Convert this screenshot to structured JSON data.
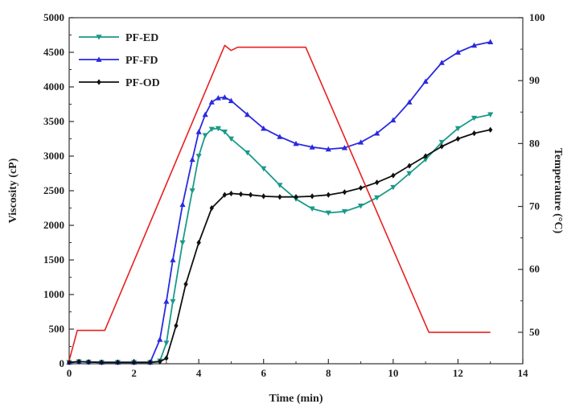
{
  "chart_data": {
    "type": "line",
    "xlabel": "Time (min)",
    "ylabel": "Viscosity (cP)",
    "y2label": "Temperature (°C)",
    "xlim": [
      0,
      14
    ],
    "ylim": [
      0,
      5000
    ],
    "y2lim": [
      45,
      100
    ],
    "xticks": [
      "0",
      "2",
      "4",
      "6",
      "8",
      "10",
      "12",
      "14"
    ],
    "yticks": [
      "0",
      "500",
      "1000",
      "1500",
      "2000",
      "2500",
      "3000",
      "3500",
      "4000",
      "4500",
      "5000"
    ],
    "y2ticks": [
      "50",
      "60",
      "70",
      "80",
      "90",
      "100"
    ],
    "legend_position": "top-left",
    "grid": false,
    "series": [
      {
        "name": "PF-ED",
        "color": "#1a9a8a",
        "marker": "triangle-down",
        "axis": "left",
        "x": [
          0,
          0.3,
          0.6,
          1.0,
          1.5,
          2.0,
          2.5,
          2.8,
          3.0,
          3.2,
          3.5,
          3.8,
          4.0,
          4.2,
          4.4,
          4.6,
          4.8,
          5.0,
          5.5,
          6.0,
          6.5,
          7.0,
          7.5,
          8.0,
          8.5,
          9.0,
          9.5,
          10.0,
          10.5,
          11.0,
          11.5,
          12.0,
          12.5,
          13.0
        ],
        "y": [
          20,
          30,
          25,
          20,
          20,
          20,
          20,
          40,
          300,
          900,
          1750,
          2500,
          3000,
          3300,
          3390,
          3400,
          3350,
          3250,
          3050,
          2820,
          2580,
          2380,
          2240,
          2180,
          2200,
          2280,
          2400,
          2550,
          2750,
          2950,
          3200,
          3400,
          3550,
          3600
        ]
      },
      {
        "name": "PF-FD",
        "color": "#2a2ae0",
        "marker": "triangle-up",
        "axis": "left",
        "x": [
          0,
          0.3,
          0.6,
          1.0,
          1.5,
          2.0,
          2.5,
          2.8,
          3.0,
          3.2,
          3.5,
          3.8,
          4.0,
          4.2,
          4.4,
          4.6,
          4.8,
          5.0,
          5.5,
          6.0,
          6.5,
          7.0,
          7.5,
          8.0,
          8.5,
          9.0,
          9.5,
          10.0,
          10.5,
          11.0,
          11.5,
          12.0,
          12.5,
          13.0
        ],
        "y": [
          20,
          30,
          25,
          20,
          20,
          20,
          20,
          350,
          900,
          1500,
          2300,
          2950,
          3350,
          3600,
          3780,
          3840,
          3850,
          3800,
          3600,
          3400,
          3280,
          3180,
          3130,
          3100,
          3120,
          3200,
          3330,
          3520,
          3780,
          4080,
          4350,
          4500,
          4600,
          4650
        ]
      },
      {
        "name": "PF-OD",
        "color": "#111111",
        "marker": "diamond",
        "axis": "left",
        "x": [
          0,
          0.3,
          0.6,
          1.0,
          1.5,
          2.0,
          2.5,
          2.8,
          3.0,
          3.3,
          3.6,
          4.0,
          4.4,
          4.8,
          5.0,
          5.3,
          5.6,
          6.0,
          6.5,
          7.0,
          7.5,
          8.0,
          8.5,
          9.0,
          9.5,
          10.0,
          10.5,
          11.0,
          11.5,
          12.0,
          12.5,
          13.0
        ],
        "y": [
          20,
          30,
          25,
          20,
          20,
          20,
          20,
          30,
          80,
          550,
          1150,
          1750,
          2250,
          2440,
          2460,
          2450,
          2440,
          2420,
          2410,
          2410,
          2420,
          2440,
          2480,
          2540,
          2620,
          2720,
          2860,
          3000,
          3140,
          3250,
          3330,
          3380
        ]
      },
      {
        "name": "Temperature",
        "color": "#e82020",
        "marker": "none",
        "axis": "right",
        "x": [
          0,
          0.25,
          0.4,
          1.1,
          4.8,
          5.0,
          5.2,
          7.3,
          11.1,
          11.3,
          13.0
        ],
        "y": [
          45.5,
          50.3,
          50.3,
          50.3,
          95.6,
          94.8,
          95.3,
          95.3,
          50.0,
          50.0,
          50.0
        ]
      }
    ]
  }
}
